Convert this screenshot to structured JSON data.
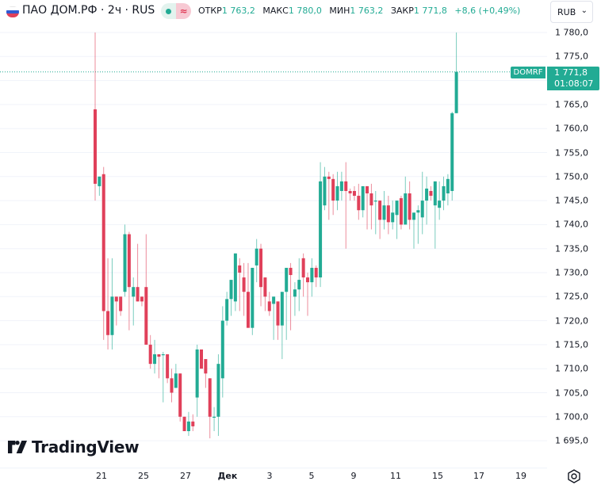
{
  "header": {
    "symbol_title": "ПАО ДОМ.РФ · 2ч · RUS",
    "flag": "russia-flag",
    "status_icons": [
      "market-open-dot-icon",
      "delayed-data-icon"
    ],
    "ohlc": {
      "open_label": "ОТКР",
      "open_value": "1 763,2",
      "high_label": "МАКС",
      "high_value": "1 780,0",
      "low_label": "МИН",
      "low_value": "1 763,2",
      "close_label": "ЗАКР",
      "close_value": "1 771,8",
      "change": "+8,6 (+0,49%)"
    },
    "currency": {
      "selected": "RUB",
      "icon": "chevron-down-icon"
    }
  },
  "price_badge": {
    "symbol": "DOMRF",
    "price": "1 771,8",
    "countdown": "01:08:07",
    "color": "#22ab94"
  },
  "branding": {
    "logo_text": "TradingView"
  },
  "settings_icon": "gear-icon",
  "colors": {
    "up": "#22ab94",
    "down": "#e0405a",
    "grid": "#f0f3fa",
    "text": "#131722"
  },
  "chart_data": {
    "type": "candlestick",
    "title": "ПАО ДОМ.РФ · 2ч · RUS",
    "xlabel": "",
    "ylabel": "RUB",
    "ylim": [
      1693,
      1782
    ],
    "y_ticks": [
      "1 780,0",
      "1 775,0",
      "1 770,0",
      "1 765,0",
      "1 760,0",
      "1 755,0",
      "1 750,0",
      "1 745,0",
      "1 740,0",
      "1 735,0",
      "1 730,0",
      "1 725,0",
      "1 720,0",
      "1 715,0",
      "1 710,0",
      "1 705,0",
      "1 700,0",
      "1 695,0"
    ],
    "y_tick_values": [
      1780,
      1775,
      1770,
      1765,
      1760,
      1755,
      1750,
      1745,
      1740,
      1735,
      1730,
      1725,
      1720,
      1715,
      1710,
      1705,
      1700,
      1695
    ],
    "x_ticks": [
      {
        "label": "21",
        "x": 128
      },
      {
        "label": "25",
        "x": 181
      },
      {
        "label": "27",
        "x": 234
      },
      {
        "label": "Дек",
        "x": 287,
        "bold": true
      },
      {
        "label": "3",
        "x": 340
      },
      {
        "label": "5",
        "x": 393
      },
      {
        "label": "9",
        "x": 446
      },
      {
        "label": "11",
        "x": 499
      },
      {
        "label": "15",
        "x": 552
      },
      {
        "label": "17",
        "x": 604
      },
      {
        "label": "19",
        "x": 657
      }
    ],
    "last_price": 1771.8,
    "grid": true,
    "candles": [
      {
        "o": 1764.0,
        "h": 1780.0,
        "l": 1745.0,
        "c": 1748.5
      },
      {
        "o": 1748.0,
        "h": 1750.0,
        "l": 1746.0,
        "c": 1750.0
      },
      {
        "o": 1750.5,
        "h": 1752.0,
        "l": 1716.0,
        "c": 1722.0
      },
      {
        "o": 1722.0,
        "h": 1733.0,
        "l": 1714.0,
        "c": 1717.0
      },
      {
        "o": 1717.0,
        "h": 1733.0,
        "l": 1714.0,
        "c": 1725.0
      },
      {
        "o": 1725.0,
        "h": 1725.0,
        "l": 1719.0,
        "c": 1724.0
      },
      {
        "o": 1725.0,
        "h": 1725.0,
        "l": 1721.0,
        "c": 1722.0
      },
      {
        "o": 1726.0,
        "h": 1740.0,
        "l": 1725.0,
        "c": 1738.0
      },
      {
        "o": 1738.0,
        "h": 1738.5,
        "l": 1718.0,
        "c": 1727.0
      },
      {
        "o": 1725.0,
        "h": 1729.0,
        "l": 1719.0,
        "c": 1727.0
      },
      {
        "o": 1727.0,
        "h": 1736.0,
        "l": 1724.0,
        "c": 1724.0
      },
      {
        "o": 1725.0,
        "h": 1725.0,
        "l": 1723.0,
        "c": 1724.0
      },
      {
        "o": 1727.0,
        "h": 1738.0,
        "l": 1715.0,
        "c": 1715.0
      },
      {
        "o": 1715.0,
        "h": 1717.0,
        "l": 1710.0,
        "c": 1711.0
      },
      {
        "o": 1711.0,
        "h": 1716.0,
        "l": 1709.0,
        "c": 1713.0
      },
      {
        "o": 1713.0,
        "h": 1713.0,
        "l": 1708.0,
        "c": 1712.5
      },
      {
        "o": 1713.0,
        "h": 1713.5,
        "l": 1703.0,
        "c": 1713.0
      },
      {
        "o": 1713.0,
        "h": 1713.0,
        "l": 1707.0,
        "c": 1708.0
      },
      {
        "o": 1708.0,
        "h": 1710.0,
        "l": 1703.0,
        "c": 1705.0
      },
      {
        "o": 1706.0,
        "h": 1711.0,
        "l": 1706.0,
        "c": 1709.0
      },
      {
        "o": 1709.0,
        "h": 1709.0,
        "l": 1699.0,
        "c": 1700.0
      },
      {
        "o": 1700.0,
        "h": 1700.0,
        "l": 1697.0,
        "c": 1697.0
      },
      {
        "o": 1697.0,
        "h": 1701.0,
        "l": 1696.0,
        "c": 1699.0
      },
      {
        "o": 1699.0,
        "h": 1700.5,
        "l": 1697.0,
        "c": 1698.0
      },
      {
        "o": 1704.0,
        "h": 1715.0,
        "l": 1700.0,
        "c": 1714.0
      },
      {
        "o": 1714.0,
        "h": 1714.0,
        "l": 1711.0,
        "c": 1710.0
      },
      {
        "o": 1712.0,
        "h": 1712.0,
        "l": 1706.0,
        "c": 1709.0
      },
      {
        "o": 1708.0,
        "h": 1708.0,
        "l": 1695.5,
        "c": 1700.0
      },
      {
        "o": 1700.0,
        "h": 1702.0,
        "l": 1697.0,
        "c": 1700.0
      },
      {
        "o": 1700.0,
        "h": 1713.0,
        "l": 1696.0,
        "c": 1711.0
      },
      {
        "o": 1708.0,
        "h": 1723.0,
        "l": 1704.0,
        "c": 1720.0
      },
      {
        "o": 1720.0,
        "h": 1726.0,
        "l": 1719.0,
        "c": 1724.5
      },
      {
        "o": 1724.5,
        "h": 1727.0,
        "l": 1721.0,
        "c": 1728.5
      },
      {
        "o": 1724.0,
        "h": 1734.0,
        "l": 1722.0,
        "c": 1734.0
      },
      {
        "o": 1731.5,
        "h": 1733.0,
        "l": 1722.0,
        "c": 1730.0
      },
      {
        "o": 1729.0,
        "h": 1732.0,
        "l": 1721.0,
        "c": 1726.0
      },
      {
        "o": 1726.0,
        "h": 1732.0,
        "l": 1720.0,
        "c": 1718.5
      },
      {
        "o": 1718.5,
        "h": 1731.0,
        "l": 1717.0,
        "c": 1731.0
      },
      {
        "o": 1731.5,
        "h": 1737.0,
        "l": 1728.0,
        "c": 1735.0
      },
      {
        "o": 1735.0,
        "h": 1736.0,
        "l": 1723.0,
        "c": 1727.0
      },
      {
        "o": 1729.0,
        "h": 1729.0,
        "l": 1722.0,
        "c": 1725.0
      },
      {
        "o": 1724.0,
        "h": 1726.0,
        "l": 1721.0,
        "c": 1722.0
      },
      {
        "o": 1723.5,
        "h": 1725.0,
        "l": 1716.0,
        "c": 1725.0
      },
      {
        "o": 1724.0,
        "h": 1724.0,
        "l": 1716.0,
        "c": 1719.0
      },
      {
        "o": 1719.0,
        "h": 1720.0,
        "l": 1712.0,
        "c": 1726.0
      },
      {
        "o": 1726.0,
        "h": 1729.0,
        "l": 1716.0,
        "c": 1731.0
      },
      {
        "o": 1731.0,
        "h": 1732.0,
        "l": 1718.0,
        "c": 1729.5
      },
      {
        "o": 1725.0,
        "h": 1728.0,
        "l": 1721.0,
        "c": 1726.5
      },
      {
        "o": 1726.5,
        "h": 1733.0,
        "l": 1722.0,
        "c": 1728.5
      },
      {
        "o": 1733.0,
        "h": 1734.0,
        "l": 1725.0,
        "c": 1729.0
      },
      {
        "o": 1729.0,
        "h": 1730.0,
        "l": 1721.0,
        "c": 1728.0
      },
      {
        "o": 1728.0,
        "h": 1733.0,
        "l": 1725.0,
        "c": 1731.0
      },
      {
        "o": 1731.0,
        "h": 1731.5,
        "l": 1727.0,
        "c": 1729.0
      },
      {
        "o": 1729.0,
        "h": 1753.0,
        "l": 1727.0,
        "c": 1749.0
      },
      {
        "o": 1744.0,
        "h": 1752.0,
        "l": 1743.0,
        "c": 1750.0
      },
      {
        "o": 1750.0,
        "h": 1751.0,
        "l": 1741.0,
        "c": 1749.5
      },
      {
        "o": 1749.5,
        "h": 1750.5,
        "l": 1742.0,
        "c": 1745.0
      },
      {
        "o": 1745.0,
        "h": 1751.0,
        "l": 1743.0,
        "c": 1748.0
      },
      {
        "o": 1747.0,
        "h": 1751.0,
        "l": 1745.0,
        "c": 1749.0
      },
      {
        "o": 1749.0,
        "h": 1753.0,
        "l": 1735.0,
        "c": 1747.0
      },
      {
        "o": 1747.0,
        "h": 1747.5,
        "l": 1745.0,
        "c": 1746.5
      },
      {
        "o": 1747.0,
        "h": 1748.0,
        "l": 1745.0,
        "c": 1746.0
      },
      {
        "o": 1746.0,
        "h": 1748.5,
        "l": 1741.0,
        "c": 1743.0
      },
      {
        "o": 1743.0,
        "h": 1746.0,
        "l": 1741.5,
        "c": 1748.0
      },
      {
        "o": 1748.0,
        "h": 1748.0,
        "l": 1739.0,
        "c": 1746.5
      },
      {
        "o": 1746.5,
        "h": 1748.5,
        "l": 1739.0,
        "c": 1744.0
      },
      {
        "o": 1745.0,
        "h": 1747.0,
        "l": 1738.0,
        "c": 1745.0
      },
      {
        "o": 1745.0,
        "h": 1745.0,
        "l": 1737.0,
        "c": 1741.0
      },
      {
        "o": 1741.0,
        "h": 1747.0,
        "l": 1739.0,
        "c": 1744.0
      },
      {
        "o": 1744.0,
        "h": 1746.0,
        "l": 1738.0,
        "c": 1740.5
      },
      {
        "o": 1740.5,
        "h": 1745.0,
        "l": 1739.0,
        "c": 1742.5
      },
      {
        "o": 1742.0,
        "h": 1743.0,
        "l": 1737.0,
        "c": 1745.0
      },
      {
        "o": 1745.5,
        "h": 1746.0,
        "l": 1739.0,
        "c": 1740.0
      },
      {
        "o": 1740.0,
        "h": 1750.0,
        "l": 1741.0,
        "c": 1746.5
      },
      {
        "o": 1746.5,
        "h": 1749.0,
        "l": 1739.0,
        "c": 1741.0
      },
      {
        "o": 1741.0,
        "h": 1742.0,
        "l": 1735.0,
        "c": 1742.5
      },
      {
        "o": 1742.5,
        "h": 1744.0,
        "l": 1736.0,
        "c": 1743.0
      },
      {
        "o": 1741.5,
        "h": 1751.0,
        "l": 1738.0,
        "c": 1745.0
      },
      {
        "o": 1745.0,
        "h": 1750.0,
        "l": 1740.0,
        "c": 1747.5
      },
      {
        "o": 1747.0,
        "h": 1748.0,
        "l": 1745.0,
        "c": 1746.0
      },
      {
        "o": 1744.0,
        "h": 1749.0,
        "l": 1735.0,
        "c": 1749.0
      },
      {
        "o": 1743.5,
        "h": 1749.0,
        "l": 1741.0,
        "c": 1745.0
      },
      {
        "o": 1745.0,
        "h": 1750.0,
        "l": 1743.0,
        "c": 1748.0
      },
      {
        "o": 1746.5,
        "h": 1750.5,
        "l": 1744.0,
        "c": 1749.5
      },
      {
        "o": 1747.0,
        "h": 1763.5,
        "l": 1745.0,
        "c": 1763.2
      },
      {
        "o": 1763.2,
        "h": 1780.0,
        "l": 1763.2,
        "c": 1771.8
      }
    ]
  }
}
